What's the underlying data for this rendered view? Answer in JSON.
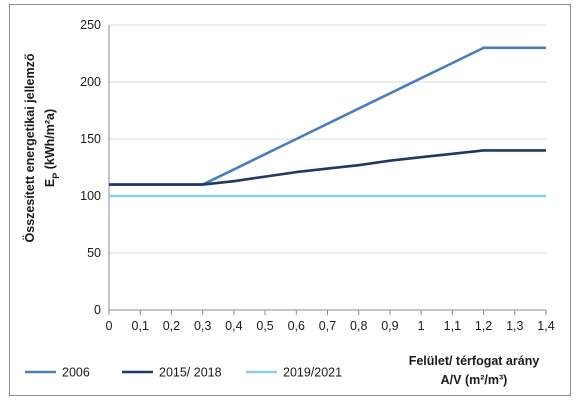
{
  "chart_data": {
    "type": "line",
    "x": [
      0,
      0.1,
      0.2,
      0.3,
      0.4,
      0.5,
      0.6,
      0.7,
      0.8,
      0.9,
      1.0,
      1.1,
      1.2,
      1.3,
      1.4
    ],
    "x_tick_labels": [
      "0",
      "0,1",
      "0,2",
      "0,3",
      "0,4",
      "0,5",
      "0,6",
      "0,7",
      "0,8",
      "0,9",
      "1",
      "1,1",
      "1,2",
      "1,3",
      "1,4"
    ],
    "y_tick_labels": [
      "0",
      "50",
      "100",
      "150",
      "200",
      "250"
    ],
    "xlim": [
      0,
      1.4
    ],
    "ylim": [
      0,
      250
    ],
    "grid": "horizontal",
    "legend_position": "bottom-left",
    "ylabel": "Összesített energetikai jellemző",
    "ylabel_line2": "EP (kWh/m²a)",
    "xlabel": "Felület/ térfogat arány",
    "xlabel_line2": "A/V (m²/m³)",
    "series": [
      {
        "name": "2006",
        "color": "#4a7ebb",
        "values": [
          110,
          110,
          110,
          110,
          123.3,
          136.7,
          150,
          163.3,
          176.7,
          190,
          203.3,
          216.7,
          230,
          230,
          230
        ]
      },
      {
        "name": "2015/ 2018",
        "color": "#1f3864",
        "values": [
          110,
          110,
          110,
          110,
          113,
          117,
          121,
          124,
          127,
          131,
          134,
          137,
          140,
          140,
          140
        ]
      },
      {
        "name": "2019/2021",
        "color": "#8ecfe6",
        "values": [
          100,
          100,
          100,
          100,
          100,
          100,
          100,
          100,
          100,
          100,
          100,
          100,
          100,
          100,
          100
        ]
      }
    ]
  }
}
